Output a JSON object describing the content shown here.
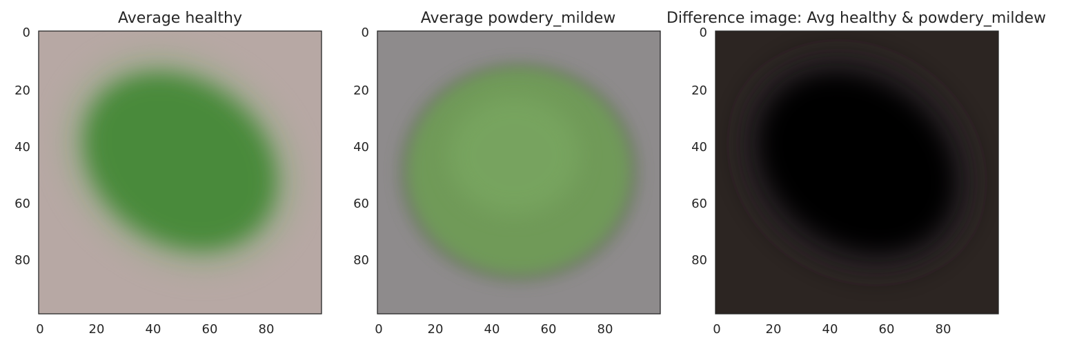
{
  "chart_data": [
    {
      "type": "heatmap",
      "title": "Average healthy",
      "xlabel": "",
      "ylabel": "",
      "xlim": [
        0,
        99
      ],
      "ylim": [
        99,
        0
      ],
      "xticks": [
        0,
        20,
        40,
        60,
        80
      ],
      "yticks": [
        0,
        20,
        40,
        60,
        80
      ],
      "image_size": [
        100,
        100
      ],
      "background_color": "#b7a8a4",
      "region": {
        "shape": "ellipse",
        "color": "#4a8a3a",
        "center": [
          50,
          46
        ],
        "radius": [
          36,
          28
        ],
        "rotation_deg": 35
      }
    },
    {
      "type": "heatmap",
      "title": "Average powdery_mildew",
      "xlabel": "",
      "ylabel": "",
      "xlim": [
        0,
        99
      ],
      "ylim": [
        99,
        0
      ],
      "xticks": [
        0,
        20,
        40,
        60,
        80
      ],
      "yticks": [
        0,
        20,
        40,
        60,
        80
      ],
      "image_size": [
        100,
        100
      ],
      "background_color": "#8e8b8c",
      "region": {
        "shape": "ellipse",
        "color": "#6f9a58",
        "center": [
          50,
          50
        ],
        "radius": [
          41,
          38
        ],
        "rotation_deg": 0
      }
    },
    {
      "type": "heatmap",
      "title": "Difference image: Avg healthy & powdery_mildew",
      "xlabel": "",
      "ylabel": "",
      "xlim": [
        0,
        99
      ],
      "ylim": [
        99,
        0
      ],
      "xticks": [
        0,
        20,
        40,
        60,
        80
      ],
      "yticks": [
        0,
        20,
        40,
        60,
        80
      ],
      "image_size": [
        100,
        100
      ],
      "background_color": "#2c2522",
      "region": {
        "shape": "ellipse",
        "color": "#050605",
        "center": [
          50,
          47
        ],
        "radius": [
          36,
          28
        ],
        "rotation_deg": 35
      }
    }
  ]
}
